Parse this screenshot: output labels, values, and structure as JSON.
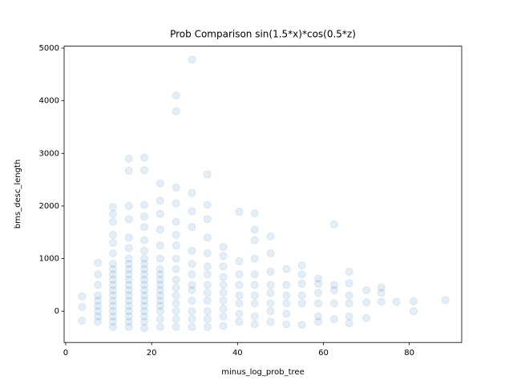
{
  "chart_data": {
    "type": "scatter",
    "title": "Prob Comparison sin(1.5*x)*cos(0.5*z)",
    "x_label": "minus_log_prob_tree",
    "y_label": "bms_desc_length",
    "xlim": [
      -0.37,
      92.2
    ],
    "ylim": [
      -594,
      5037
    ],
    "xticks": [
      0,
      20,
      40,
      60,
      80
    ],
    "yticks": [
      0,
      1000,
      2000,
      3000,
      4000,
      5000
    ],
    "grid": false,
    "series": [
      {
        "color": "#1f77b4",
        "alpha": 0.12,
        "x": [
          3.8,
          3.8,
          3.8,
          7.5,
          7.5,
          7.5,
          7.5,
          7.5,
          7.5,
          7.5,
          7.5,
          7.5,
          11,
          11,
          11,
          11,
          11,
          11,
          11,
          11,
          11,
          11,
          11,
          11,
          11,
          11,
          11,
          11,
          11,
          11,
          11,
          14.7,
          14.7,
          14.7,
          14.7,
          14.7,
          14.7,
          14.7,
          14.7,
          14.7,
          14.7,
          14.7,
          14.7,
          14.7,
          14.7,
          14.7,
          14.7,
          14.7,
          14.7,
          14.7,
          14.7,
          18.3,
          18.3,
          18.3,
          18.3,
          18.3,
          18.3,
          18.3,
          18.3,
          18.3,
          18.3,
          18.3,
          18.3,
          18.3,
          18.3,
          18.3,
          18.3,
          18.3,
          18.3,
          18.3,
          18.3,
          18.3,
          22,
          22,
          22,
          22,
          22,
          22,
          22,
          22,
          22,
          22,
          22,
          22,
          22,
          22,
          22,
          22,
          22,
          25.7,
          25.7,
          25.7,
          25.7,
          25.7,
          25.7,
          25.7,
          25.7,
          25.7,
          25.7,
          25.7,
          25.7,
          25.7,
          25.7,
          25.7,
          25.7,
          29.4,
          29.4,
          29.4,
          29.4,
          29.4,
          29.4,
          29.4,
          29.4,
          29.4,
          29.4,
          29.4,
          29.4,
          29.4,
          33,
          33,
          33,
          33,
          33,
          33,
          33,
          33,
          33,
          33,
          33,
          33,
          33,
          36.7,
          36.7,
          36.7,
          36.7,
          36.7,
          36.7,
          36.7,
          36.7,
          36.7,
          36.7,
          40.4,
          40.4,
          40.4,
          40.4,
          40.4,
          40.4,
          40.4,
          40.4,
          44,
          44,
          44,
          44,
          44,
          44,
          44,
          44,
          44,
          44,
          47.7,
          47.7,
          47.7,
          47.7,
          47.7,
          47.7,
          47.7,
          47.7,
          51.4,
          51.4,
          51.4,
          51.4,
          51.4,
          51.4,
          55,
          55,
          55,
          55,
          55,
          55,
          58.8,
          58.8,
          58.8,
          58.8,
          58.8,
          58.8,
          62.5,
          62.5,
          62.5,
          62.5,
          62.5,
          66,
          66,
          66,
          66,
          66,
          66,
          70,
          70,
          70,
          73.5,
          73.5,
          73.5,
          77,
          81,
          81,
          88.4
        ],
        "values": [
          80,
          280,
          -180,
          -200,
          -100,
          0,
          100,
          200,
          300,
          500,
          700,
          920,
          -300,
          -200,
          -100,
          0,
          100,
          200,
          300,
          400,
          500,
          600,
          700,
          800,
          900,
          1100,
          1300,
          1450,
          1700,
          1850,
          1980,
          -300,
          -200,
          -100,
          0,
          100,
          200,
          300,
          400,
          500,
          600,
          700,
          800,
          900,
          1000,
          1200,
          1400,
          1750,
          2000,
          2670,
          2900,
          -320,
          -200,
          -100,
          0,
          100,
          200,
          300,
          400,
          500,
          600,
          700,
          800,
          900,
          1000,
          1150,
          1350,
          1600,
          1800,
          2020,
          2680,
          2920,
          -300,
          -150,
          0,
          100,
          200,
          300,
          400,
          500,
          600,
          700,
          800,
          1000,
          1250,
          1550,
          1850,
          2100,
          2430,
          -300,
          -150,
          0,
          150,
          300,
          450,
          600,
          800,
          1000,
          1250,
          1450,
          1700,
          2050,
          2350,
          3800,
          4100,
          -300,
          -150,
          0,
          200,
          400,
          500,
          700,
          900,
          1150,
          1600,
          1900,
          2250,
          4780,
          -300,
          -150,
          0,
          200,
          350,
          500,
          700,
          850,
          1100,
          1400,
          1750,
          2020,
          2600,
          -280,
          -100,
          50,
          200,
          350,
          500,
          650,
          850,
          1050,
          1220,
          -200,
          -50,
          150,
          300,
          500,
          700,
          950,
          1890,
          -250,
          -100,
          150,
          300,
          500,
          700,
          1000,
          1350,
          1550,
          1860,
          -200,
          0,
          150,
          350,
          500,
          750,
          1100,
          1420,
          -250,
          -50,
          150,
          300,
          500,
          800,
          -260,
          150,
          300,
          520,
          700,
          870,
          -200,
          -100,
          150,
          350,
          520,
          620,
          -150,
          150,
          400,
          500,
          1650,
          -230,
          -100,
          150,
          300,
          530,
          750,
          -130,
          170,
          400,
          180,
          350,
          450,
          180,
          0,
          190,
          210
        ]
      }
    ]
  }
}
